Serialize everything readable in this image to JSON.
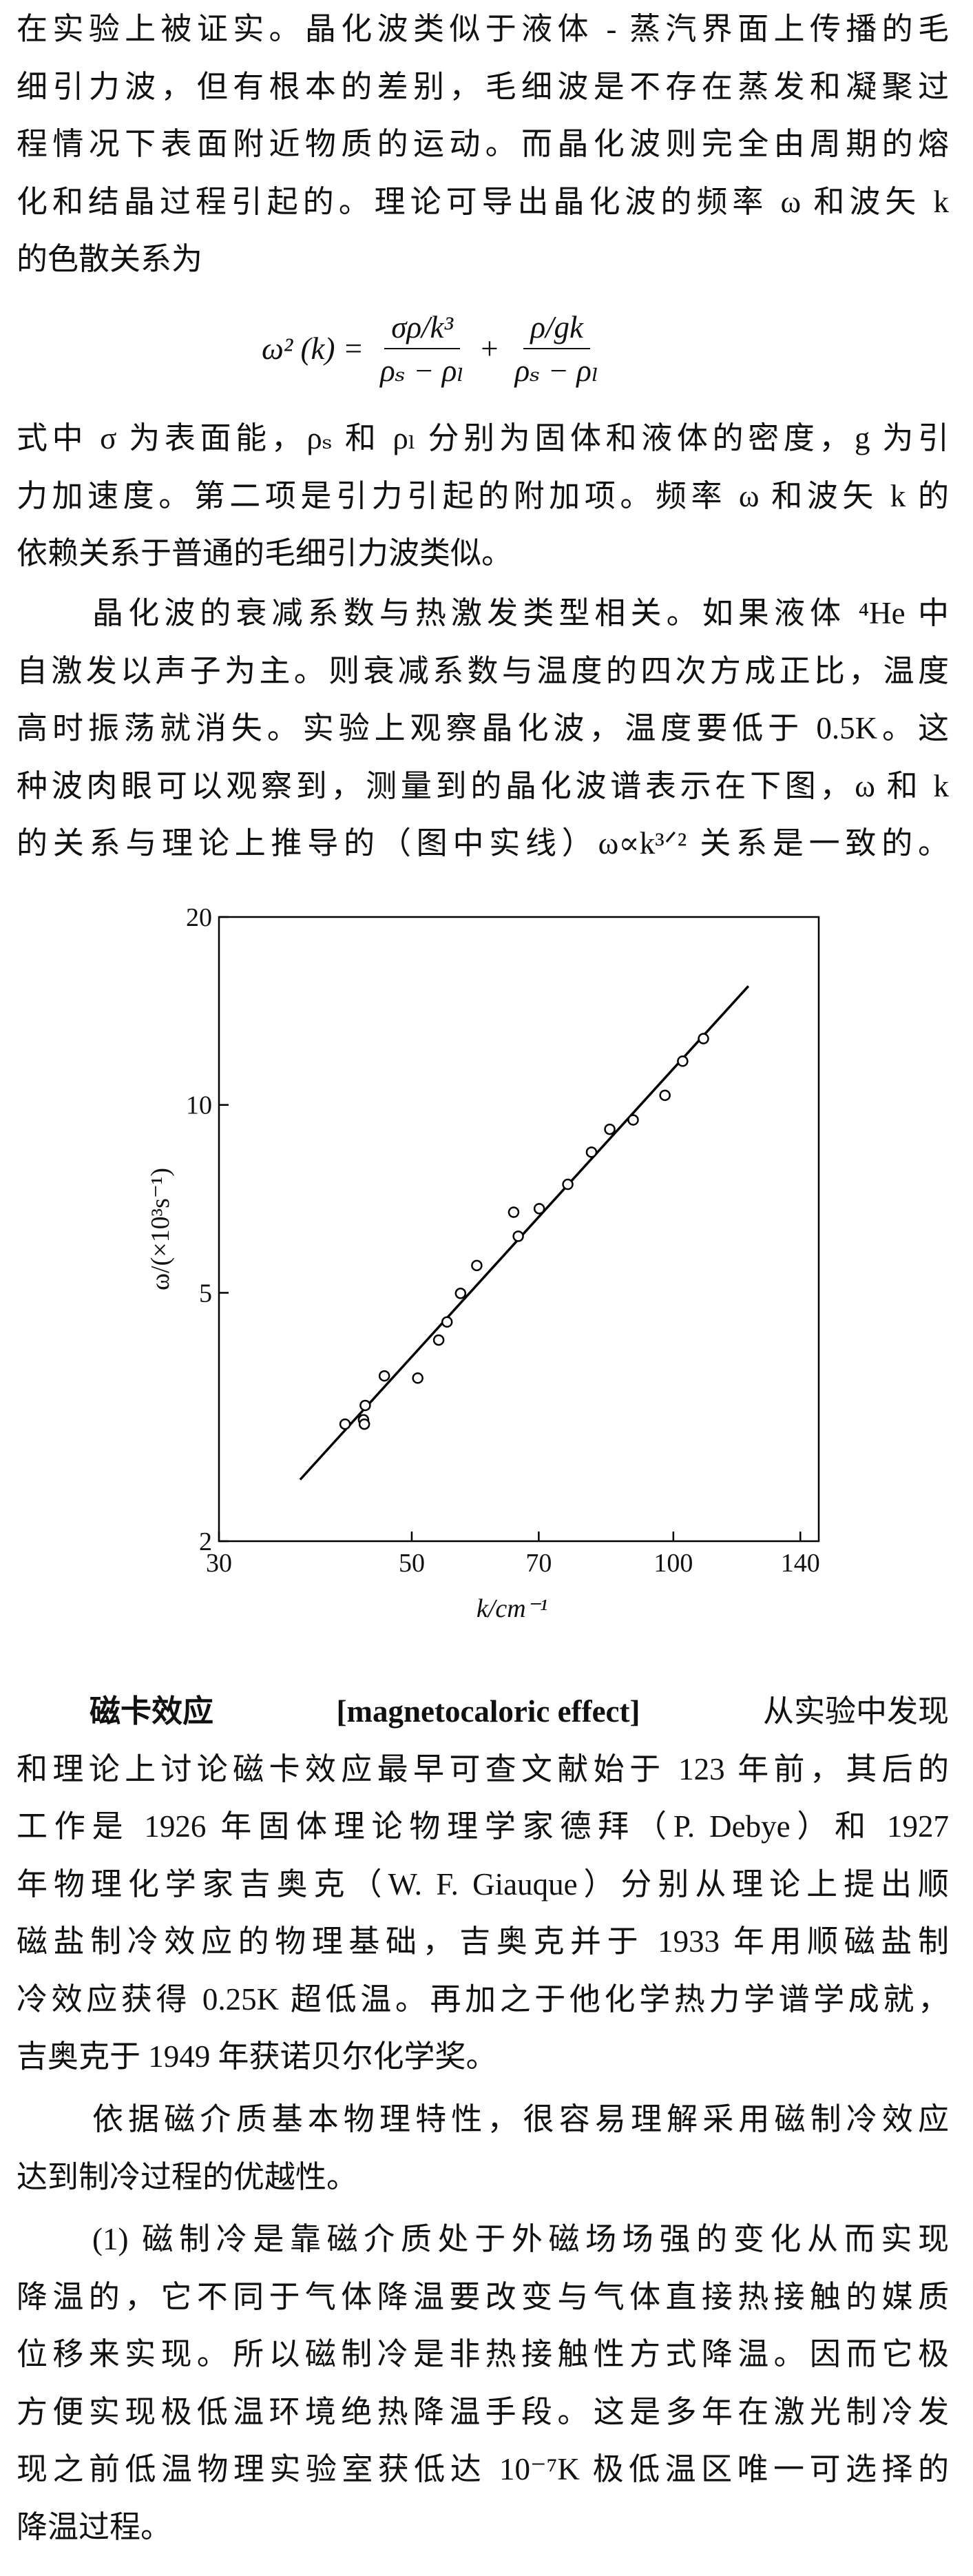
{
  "p1": {
    "lines": [
      "在实验上被证实。晶化波类似于液体 - 蒸汽界面上传播的毛",
      "细引力波，但有根本的差别，毛细波是不存在蒸发和凝聚过",
      "程情况下表面附近物质的运动。而晶化波则完全由周期的熔",
      "化和结晶过程引起的。理论可导出晶化波的频率 ω 和波矢 k",
      "的色散关系为"
    ]
  },
  "equation": {
    "lhs": "ω² (k) =",
    "num1": "σρ/k³",
    "den1": "ρₛ − ρₗ",
    "plus": "+",
    "num2": "ρ/gk",
    "den2": "ρₛ − ρₗ"
  },
  "p2": {
    "lines": [
      "式中 σ 为表面能，ρₛ 和 ρₗ 分别为固体和液体的密度，g 为引",
      "力加速度。第二项是引力引起的附加项。频率 ω 和波矢 k 的",
      "依赖关系于普通的毛细引力波类似。"
    ]
  },
  "p3": {
    "lines": [
      "晶化波的衰减系数与热激发类型相关。如果液体 ⁴He 中",
      "自激发以声子为主。则衰减系数与温度的四次方成正比，温度",
      "高时振荡就消失。实验上观察晶化波，温度要低于 0.5K。这",
      "种波肉眼可以观察到，测量到的晶化波谱表示在下图，ω 和 k",
      "的关系与理论上推导的（图中实线）ω∝k³ᐟ² 关系是一致的。"
    ]
  },
  "chart_data": {
    "type": "scatter",
    "xlabel": "k/cm⁻¹",
    "ylabel": "ω/(×10³s⁻¹)",
    "log_x": true,
    "log_y": true,
    "xlim": [
      30,
      147
    ],
    "ylim": [
      2,
      20
    ],
    "xticks": [
      30,
      50,
      70,
      100,
      140
    ],
    "yticks": [
      2,
      5,
      10,
      20
    ],
    "color": "#000000",
    "points": {
      "x": [
        41.9,
        44.0,
        44.2,
        44.1,
        46.5,
        50.8,
        53.7,
        54.9,
        56.9,
        59.4,
        65.5,
        66.3,
        70.1,
        75.6,
        80.5,
        84.5,
        89.9,
        97.8,
        102.5,
        108.3
      ],
      "y": [
        3.08,
        3.13,
        3.3,
        3.08,
        3.68,
        3.65,
        4.2,
        4.49,
        4.99,
        5.53,
        6.73,
        6.16,
        6.82,
        7.46,
        8.4,
        9.14,
        9.46,
        10.36,
        11.75,
        12.77
      ]
    },
    "fit": {
      "x": [
        37.2,
        122
      ],
      "y": [
        2.51,
        15.5
      ]
    }
  },
  "p4": {
    "head": "磁卡效应",
    "term": "[magnetocaloric effect]",
    "lines": [
      "从实验中发现",
      "和理论上讨论磁卡效应最早可查文献始于 123 年前，其后的",
      "工作是 1926 年固体理论物理学家德拜（P. Debye）和 1927",
      "年物理化学家吉奥克（W. F. Giauque）分别从理论上提出顺",
      "磁盐制冷效应的物理基础，吉奥克并于 1933 年用顺磁盐制",
      "冷效应获得 0.25K 超低温。再加之于他化学热力学谱学成就，",
      "吉奥克于 1949 年获诺贝尔化学奖。"
    ]
  },
  "p5": {
    "lines": [
      "依据磁介质基本物理特性，很容易理解采用磁制冷效应",
      "达到制冷过程的优越性。"
    ]
  },
  "p6": {
    "lines": [
      "(1) 磁制冷是靠磁介质处于外磁场场强的变化从而实现",
      "降温的，它不同于气体降温要改变与气体直接热接触的媒质",
      "位移来实现。所以磁制冷是非热接触性方式降温。因而它极",
      "方便实现极低温环境绝热降温手段。这是多年在激光制冷发",
      "现之前低温物理实验室获低达 10⁻⁷K 极低温区唯一可选择的",
      "降温过程。"
    ]
  }
}
